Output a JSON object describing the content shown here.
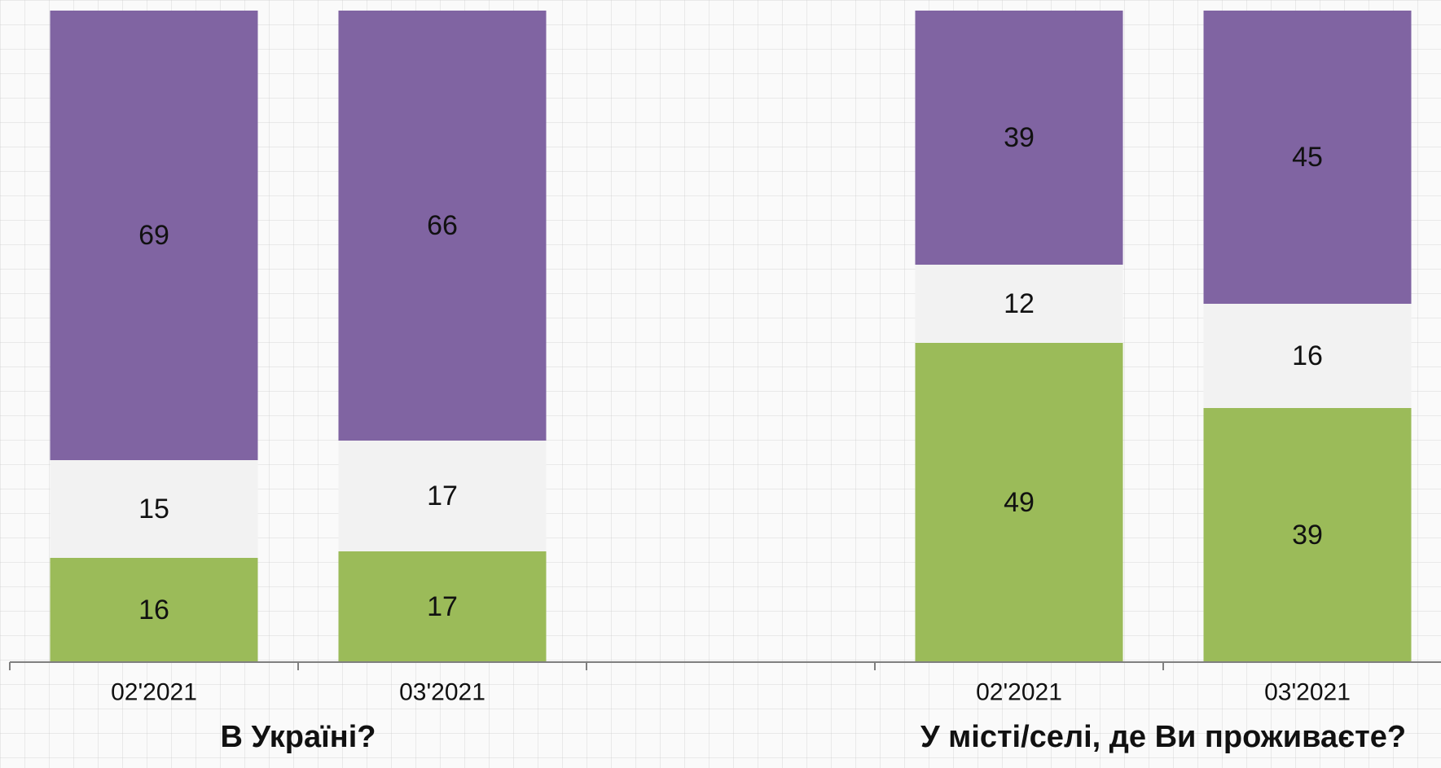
{
  "chart_data": {
    "type": "bar",
    "stacked": true,
    "orientation": "vertical",
    "categories": [
      "02'2021",
      "03'2021",
      "",
      "02'2021",
      "03'2021"
    ],
    "groups": [
      {
        "title": "В Україні?",
        "categories": [
          "02'2021",
          "03'2021"
        ]
      },
      {
        "title": "У місті/селі, де Ви проживаєте?",
        "categories": [
          "02'2021",
          "03'2021"
        ]
      }
    ],
    "series": [
      {
        "color": "#9bbb59",
        "values": [
          16,
          17,
          null,
          49,
          39
        ]
      },
      {
        "color": "#f2f2f2",
        "values": [
          15,
          17,
          null,
          12,
          16
        ]
      },
      {
        "color": "#8064a2",
        "values": [
          69,
          66,
          null,
          39,
          45
        ]
      }
    ],
    "ylim": [
      0,
      100
    ],
    "grid": true,
    "legend": "none"
  }
}
